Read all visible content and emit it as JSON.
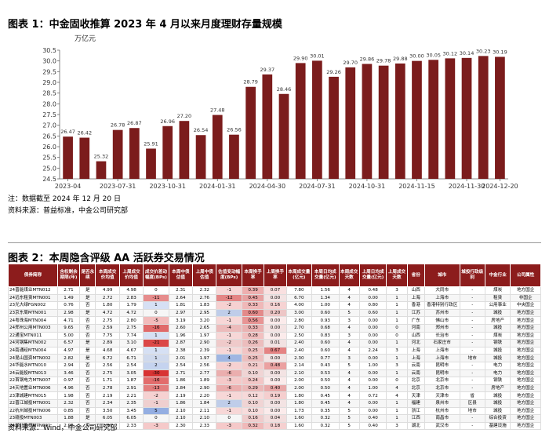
{
  "chart_data": {
    "type": "bar",
    "title": "图表 1：中金固收推算 2023 年 4 月以来月度理财存量规模",
    "y_label": "万亿元",
    "categories": [
      "2023-04",
      null,
      null,
      "2023-07-31",
      null,
      null,
      "2023-10-31",
      null,
      null,
      "2024-01-31",
      null,
      null,
      "2024-04-30",
      null,
      null,
      "2024-07-31",
      null,
      null,
      "2024-10-31",
      null,
      null,
      "2024-11-15",
      null,
      null,
      "2024-11-30",
      null,
      "2024-12-20"
    ],
    "values": [
      26.47,
      26.42,
      25.32,
      26.78,
      26.87,
      25.91,
      26.96,
      27.2,
      26.54,
      27.48,
      26.56,
      28.79,
      29.37,
      28.46,
      29.9,
      30.01,
      29.26,
      29.7,
      29.86,
      29.78,
      29.88,
      30.0,
      30.05,
      30.12,
      30.14,
      30.23,
      30.19
    ],
    "value_labels": [
      "26.47",
      "26.42",
      "25.32",
      "26.78",
      "26.87",
      "25.91",
      "26.96",
      "27.20",
      "26.54",
      "27.48",
      "26.56",
      "28.79",
      "29.37",
      "28.46",
      "29.90",
      "30.01",
      "29.26",
      "29.70",
      "29.86",
      "29.78",
      "29.88",
      "30.00",
      "30.05",
      "30.12",
      "30.14",
      "30.23",
      "30.19"
    ],
    "color": "#7b1c1c",
    "ylim": [
      24.5,
      30.5
    ],
    "yticks": [
      24.5,
      {
        "value": 25,
        "label": "25.0"
      },
      25.5,
      {
        "value": 26,
        "label": "26.0"
      },
      26.5,
      {
        "value": 27,
        "label": "27.0"
      },
      27.5,
      {
        "value": 28,
        "label": "28.0"
      },
      28.5,
      {
        "value": 29,
        "label": "29.0"
      },
      29.5,
      {
        "value": 30,
        "label": "30.0"
      },
      30.5
    ],
    "grid": false
  },
  "chart_notes": [
    "注：数据截至 2024 年 12 月 20 日",
    "资料来源：普益标准，中金公司研究部"
  ],
  "table": {
    "title": "图表 2：本周隐含评级 AA 活跃券交易情况",
    "columns": [
      "债券简称",
      "含权剩余期限(年)",
      "是否永续",
      "本周成交价均值",
      "上周成交价均值",
      "成交价差动幅度(BPs)",
      "本周中债估值",
      "上周中债估值",
      "估值变动幅度(BPs)",
      "本周换手率",
      "上周换手率",
      "本周成交量(亿元)",
      "本周日均成交量(亿元)",
      "本周成交天数",
      "上周日均成交量(亿元)",
      "上周成交天数",
      "省份",
      "城市",
      "城投行政级别",
      "中金行业",
      "公司属性"
    ],
    "rows": [
      [
        "24晋能煤业MTN012",
        "2.71",
        "是",
        "4.99",
        "4.98",
        "0",
        "2.31",
        "2.32",
        "-1",
        "0.39",
        "0.07",
        "7.80",
        "1.56",
        "4",
        "0.48",
        "3",
        "山西",
        "大同市",
        "-",
        "煤炭",
        "地方国企"
      ],
      [
        "24远东租赁MTN001",
        "1.49",
        "是",
        "2.72",
        "2.83",
        "-11",
        "2.64",
        "2.76",
        "-12",
        "0.45",
        "0.00",
        "6.70",
        "1.34",
        "4",
        "0.00",
        "1",
        "上海",
        "上海市",
        "-",
        "租赁",
        "非国企"
      ],
      [
        "23光大绿FGN002",
        "0.76",
        "否",
        "1.80",
        "1.79",
        "1",
        "1.81",
        "1.83",
        "-2",
        "0.33",
        "0.16",
        "4.00",
        "1.00",
        "4",
        "0.80",
        "1",
        "香港",
        "香港特别行政区",
        "-",
        "公用事业",
        "中央国企"
      ],
      [
        "23京东周MTN001",
        "2.98",
        "是",
        "4.72",
        "4.72",
        "0",
        "2.97",
        "2.95",
        "2",
        "0.60",
        "0.20",
        "3.00",
        "0.60",
        "5",
        "0.60",
        "1",
        "江苏",
        "苏州市",
        "-",
        "城投",
        "地方国企"
      ],
      [
        "24粤珠海MTN004",
        "4.71",
        "否",
        "2.75",
        "2.80",
        "-5",
        "3.19",
        "3.20",
        "-1",
        "0.56",
        "0.00",
        "2.80",
        "0.93",
        "3",
        "0.00",
        "1",
        "广东",
        "佛山市",
        "-",
        "房地产",
        "地方国企"
      ],
      [
        "24郑州公用MTN003",
        "9.65",
        "否",
        "2.59",
        "2.75",
        "-16",
        "2.60",
        "2.65",
        "-4",
        "0.33",
        "0.00",
        "2.70",
        "0.68",
        "4",
        "0.00",
        "0",
        "河南",
        "郑州市",
        "-",
        "城投",
        "地方国企"
      ],
      [
        "22通宝MTN011",
        "5.00",
        "否",
        "7.75",
        "7.74",
        "1",
        "1.96",
        "1.97",
        "-1",
        "0.28",
        "0.00",
        "2.50",
        "0.83",
        "3",
        "0.00",
        "0",
        "山西",
        "长治市",
        "-",
        "煤炭",
        "地方国企"
      ],
      [
        "24河钢集MTN002",
        "6.57",
        "是",
        "2.89",
        "3.10",
        "-21",
        "2.87",
        "2.90",
        "-2",
        "0.26",
        "0.01",
        "2.40",
        "0.60",
        "4",
        "0.00",
        "1",
        "河北",
        "石家庄市",
        "-",
        "钢铁",
        "地方国企"
      ],
      [
        "24南通经MTN004",
        "4.97",
        "是",
        "4.68",
        "4.67",
        "1",
        "2.38",
        "2.39",
        "-1",
        "0.25",
        "0.67",
        "2.40",
        "0.60",
        "4",
        "2.24",
        "3",
        "上海",
        "上海市",
        "-",
        "城投",
        "地方国企"
      ],
      [
        "24昆山国资MTN002",
        "2.82",
        "是",
        "6.72",
        "6.71",
        "1",
        "2.01",
        "1.97",
        "4",
        "0.25",
        "0.00",
        "2.30",
        "0.77",
        "3",
        "0.00",
        "1",
        "上海",
        "上海市",
        "地市",
        "城投",
        "地方国企"
      ],
      [
        "24华能水MTN010",
        "2.94",
        "否",
        "2.56",
        "2.54",
        "2",
        "2.54",
        "2.56",
        "-2",
        "0.21",
        "0.48",
        "2.14",
        "0.43",
        "5",
        "1.00",
        "3",
        "云南",
        "昆明市",
        "-",
        "电力",
        "地方国企"
      ],
      [
        "24云能投MTN013",
        "3.46",
        "否",
        "2.75",
        "3.05",
        "-30",
        "2.71",
        "2.77",
        "-6",
        "0.10",
        "0.00",
        "2.10",
        "0.53",
        "4",
        "0.00",
        "1",
        "云南",
        "昆明市",
        "-",
        "电力",
        "地方国企"
      ],
      [
        "22首钢电力MTN007",
        "0.97",
        "否",
        "1.71",
        "1.87",
        "-16",
        "1.86",
        "1.89",
        "-3",
        "0.24",
        "0.00",
        "2.00",
        "0.50",
        "4",
        "0.00",
        "0",
        "北京",
        "北京市",
        "-",
        "钢铁",
        "地方国企"
      ],
      [
        "24天地置业MTN006",
        "4.96",
        "否",
        "2.78",
        "2.91",
        "-13",
        "2.84",
        "2.90",
        "-6",
        "0.29",
        "0.40",
        "2.00",
        "0.50",
        "4",
        "1.00",
        "4",
        "北京",
        "北京市",
        "-",
        "房地产",
        "地方国企"
      ],
      [
        "23津城建MTN015",
        "1.98",
        "否",
        "2.19",
        "2.21",
        "-2",
        "2.19",
        "2.20",
        "-1",
        "0.12",
        "0.19",
        "1.80",
        "0.45",
        "4",
        "0.72",
        "4",
        "天津",
        "天津市",
        "省",
        "城投",
        "地方国企"
      ],
      [
        "22晋江城投MTN001",
        "2.32",
        "否",
        "2.34",
        "2.35",
        "-1",
        "1.86",
        "1.84",
        "2",
        "0.10",
        "0.00",
        "1.80",
        "0.45",
        "4",
        "0.00",
        "1",
        "福建",
        "泉州市",
        "区县",
        "城投",
        "地方国企"
      ],
      [
        "22杭州城投MTN006",
        "0.85",
        "否",
        "3.50",
        "3.45",
        "5",
        "2.10",
        "2.11",
        "-1",
        "0.10",
        "0.00",
        "1.73",
        "0.35",
        "5",
        "0.00",
        "1",
        "浙江",
        "杭州市",
        "地市",
        "城投",
        "地方国企"
      ],
      [
        "23赣投MTN003",
        "1.88",
        "是",
        "6.05",
        "6.05",
        "0",
        "2.10",
        "2.10",
        "0",
        "0.16",
        "0.04",
        "1.60",
        "0.32",
        "5",
        "0.40",
        "1",
        "江西",
        "南昌市",
        "-",
        "综合投资",
        "地方国企"
      ],
      [
        "24湖北路桥MTN001",
        "2.98",
        "否",
        "2.30",
        "2.33",
        "-3",
        "2.30",
        "2.33",
        "-3",
        "0.32",
        "0.18",
        "1.60",
        "0.32",
        "5",
        "0.40",
        "3",
        "湖北",
        "武汉市",
        "-",
        "基建设施",
        "地方国企"
      ]
    ],
    "source": "资料来源：Wind，中金公司研究部"
  }
}
